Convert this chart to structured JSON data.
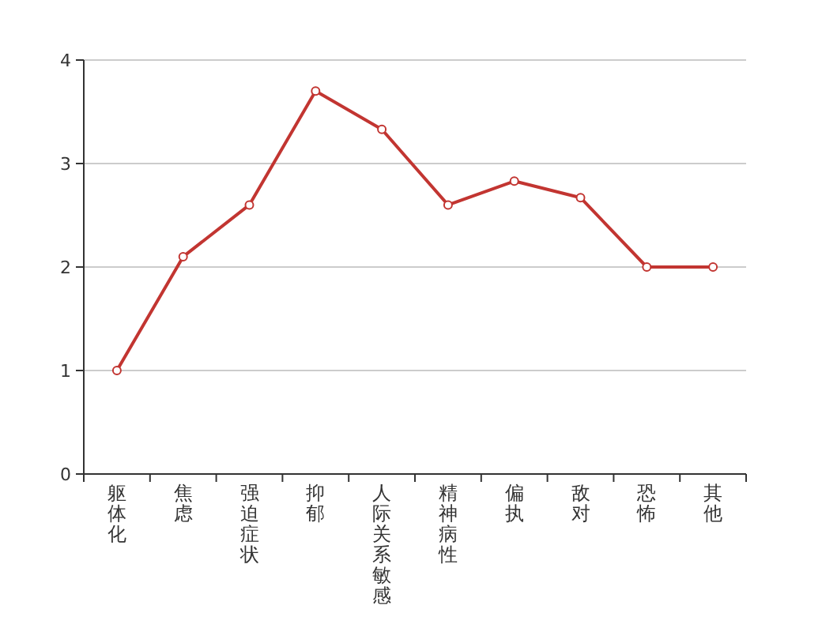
{
  "chart_data": {
    "type": "line",
    "categories": [
      "躯体化",
      "焦虑",
      "强迫症状",
      "抑郁",
      "人际关系敏感",
      "精神病性",
      "偏执",
      "敌对",
      "恐怖",
      "其他"
    ],
    "series": [
      {
        "color": "#c23531",
        "values": [
          1.0,
          2.1,
          2.6,
          3.7,
          3.33,
          2.6,
          2.83,
          2.67,
          2.0,
          2.0
        ]
      }
    ],
    "ylim": [
      0,
      4
    ],
    "yticks": [
      0,
      1,
      2,
      3,
      4
    ],
    "grid": "y",
    "marker": "circle",
    "line_style": "solid"
  }
}
